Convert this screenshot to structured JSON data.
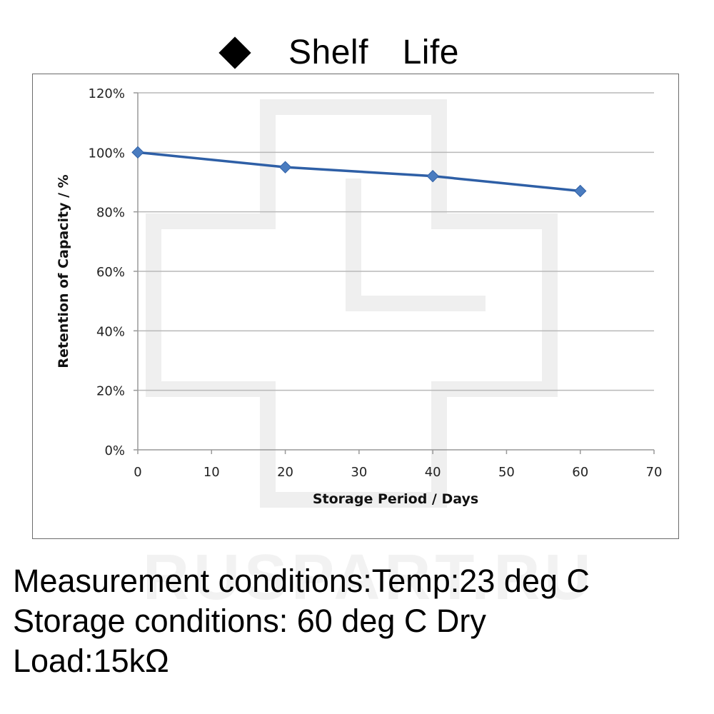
{
  "title": {
    "marker_icon": "black-diamond",
    "text": "Shelf  Life"
  },
  "watermark": "RUSPART.RU",
  "chart_data": {
    "type": "line",
    "title": "Shelf Life",
    "xlabel": "Storage Period / Days",
    "ylabel": "Retention of Capacity / %",
    "x": [
      0,
      20,
      40,
      60
    ],
    "series": [
      {
        "name": "Retention of Capacity",
        "values": [
          100,
          95,
          92,
          87
        ],
        "color": "#2e5fa6",
        "marker": "diamond",
        "marker_color": "#4a7cc0"
      }
    ],
    "xlim": [
      0,
      70
    ],
    "ylim": [
      0,
      120
    ],
    "xticks": [
      0,
      10,
      20,
      30,
      40,
      50,
      60,
      70
    ],
    "xtick_labels": [
      "0",
      "10",
      "20",
      "30",
      "40",
      "50",
      "60",
      "70"
    ],
    "yticks": [
      0,
      20,
      40,
      60,
      80,
      100,
      120
    ],
    "ytick_labels": [
      "0%",
      "20%",
      "40%",
      "60%",
      "80%",
      "100%",
      "120%"
    ],
    "grid": "horizontal",
    "legend": "none"
  },
  "notes": [
    "Measurement conditions:Temp:23 deg C",
    "Storage conditions: 60 deg C Dry",
    "Load:15kΩ"
  ]
}
